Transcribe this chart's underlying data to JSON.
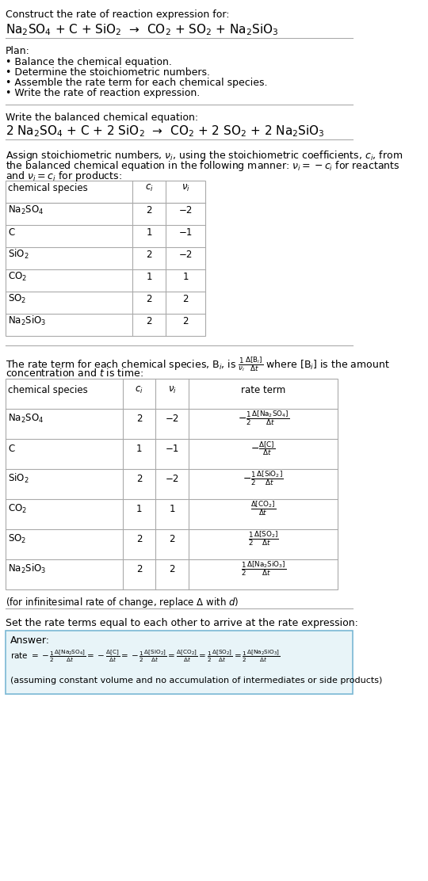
{
  "bg_color": "#ffffff",
  "text_color": "#000000",
  "section1_title": "Construct the rate of reaction expression for:",
  "section1_eq": "Na$_2$SO$_4$ + C + SiO$_2$  →  CO$_2$ + SO$_2$ + Na$_2$SiO$_3$",
  "plan_title": "Plan:",
  "plan_items": [
    "• Balance the chemical equation.",
    "• Determine the stoichiometric numbers.",
    "• Assemble the rate term for each chemical species.",
    "• Write the rate of reaction expression."
  ],
  "balanced_title": "Write the balanced chemical equation:",
  "balanced_eq": "2 Na$_2$SO$_4$ + C + 2 SiO$_2$  →  CO$_2$ + 2 SO$_2$ + 2 Na$_2$SiO$_3$",
  "stoich_para": "Assign stoichiometric numbers, $\\nu_i$, using the stoichiometric coefficients, $c_i$, from the balanced chemical equation in the following manner: $\\nu_i = -c_i$ for reactants and $\\nu_i = c_i$ for products:",
  "table1_headers": [
    "chemical species",
    "$c_i$",
    "$\\nu_i$"
  ],
  "table1_data": [
    [
      "Na$_2$SO$_4$",
      "2",
      "−2"
    ],
    [
      "C",
      "1",
      "−1"
    ],
    [
      "SiO$_2$",
      "2",
      "−2"
    ],
    [
      "CO$_2$",
      "1",
      "1"
    ],
    [
      "SO$_2$",
      "2",
      "2"
    ],
    [
      "Na$_2$SiO$_3$",
      "2",
      "2"
    ]
  ],
  "rate_para": "The rate term for each chemical species, B$_i$, is $\\frac{1}{\\nu_i}\\frac{\\Delta[\\mathrm{B}_i]}{\\Delta t}$ where [B$_i$] is the amount concentration and $t$ is time:",
  "table2_headers": [
    "chemical species",
    "$c_i$",
    "$\\nu_i$",
    "rate term"
  ],
  "table2_data": [
    [
      "Na$_2$SO$_4$",
      "2",
      "−2",
      "$-\\frac{1}{2}\\frac{\\Delta[\\mathrm{Na_2SO_4}]}{\\Delta t}$"
    ],
    [
      "C",
      "1",
      "−1",
      "$-\\frac{\\Delta[\\mathrm{C}]}{\\Delta t}$"
    ],
    [
      "SiO$_2$",
      "2",
      "−2",
      "$-\\frac{1}{2}\\frac{\\Delta[\\mathrm{SiO_2}]}{\\Delta t}$"
    ],
    [
      "CO$_2$",
      "1",
      "1",
      "$\\frac{\\Delta[\\mathrm{CO_2}]}{\\Delta t}$"
    ],
    [
      "SO$_2$",
      "2",
      "2",
      "$\\frac{1}{2}\\frac{\\Delta[\\mathrm{SO_2}]}{\\Delta t}$"
    ],
    [
      "Na$_2$SiO$_3$",
      "2",
      "2",
      "$\\frac{1}{2}\\frac{\\Delta[\\mathrm{Na_2SiO_3}]}{\\Delta t}$"
    ]
  ],
  "infinitesimal_note": "(for infinitesimal rate of change, replace Δ with $d$)",
  "set_equal_text": "Set the rate terms equal to each other to arrive at the rate expression:",
  "answer_label": "Answer:",
  "answer_rate": "rate $= -\\frac{1}{2}\\frac{\\Delta[\\mathrm{Na_2SO_4}]}{\\Delta t} = -\\frac{\\Delta[\\mathrm{C}]}{\\Delta t} = -\\frac{1}{2}\\frac{\\Delta[\\mathrm{SiO_2}]}{\\Delta t} = \\frac{\\Delta[\\mathrm{CO_2}]}{\\Delta t} = \\frac{1}{2}\\frac{\\Delta[\\mathrm{SO_2}]}{\\Delta t} = \\frac{1}{2}\\frac{\\Delta[\\mathrm{Na_2SiO_3}]}{\\Delta t}$",
  "answer_note": "(assuming constant volume and no accumulation of intermediates or side products)",
  "answer_box_color": "#e8f4f8",
  "answer_box_border": "#7ab8d4"
}
